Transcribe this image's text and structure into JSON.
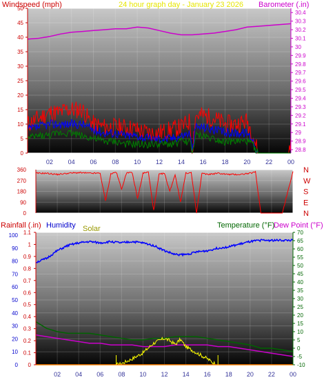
{
  "panel_top": {
    "left_title": "Windspeed (mph)",
    "center_title": "24 hour graph day - January 23 2026",
    "right_title": "Barometer (.in)"
  },
  "panel_bottom": {
    "rain_label": "Rainfall (.in)",
    "humidity_label": "Humidity",
    "solar_label": "Solar",
    "temp_label": "Temperature (°F)",
    "dew_label": "Dew Point (°F)"
  },
  "colors": {
    "windspeed": "#ff0000",
    "wind_avg": "#0000ff",
    "wind_low": "#008000",
    "barometer": "#cc00cc",
    "direction": "#ff0000",
    "humidity": "#0000ff",
    "temperature": "#006400",
    "dewpoint": "#cc00cc",
    "solar": "#ffff00",
    "rain": "#ff8000",
    "windspeed_label": "#cc0000",
    "title_yellow": "#e6e600",
    "barometer_label": "#cc00cc",
    "rain_label": "#cc0000",
    "humidity_label": "#0000cc",
    "solar_label": "#999900",
    "temp_label": "#006600",
    "dew_label": "#cc00cc",
    "direction_label": "#cc0000"
  },
  "chart_data": [
    {
      "type": "line",
      "name": "wind_barometer",
      "x_ticks": [
        "02",
        "04",
        "06",
        "08",
        "10",
        "12",
        "14",
        "16",
        "18",
        "20",
        "22",
        "00"
      ],
      "xlim": [
        0,
        24
      ],
      "y_left_ticks": [
        "0",
        "5",
        "10",
        "15",
        "20",
        "25",
        "30",
        "35",
        "40",
        "45",
        "50"
      ],
      "y_left_lim": [
        0,
        50
      ],
      "y_right_ticks": [
        "28.8",
        "28.9",
        "29",
        "29.1",
        "29.2",
        "29.3",
        "29.4",
        "29.5",
        "29.6",
        "29.7",
        "29.8",
        "29.9",
        "30",
        "30.1",
        "30.2",
        "30.3",
        "30.4"
      ],
      "y_right_lim": [
        28.76,
        30.45
      ],
      "series": [
        {
          "name": "Windspeed",
          "axis": "left",
          "x": [
            0,
            1,
            2,
            3,
            3.5,
            4,
            5,
            5.5,
            6,
            7,
            8,
            9,
            10,
            11,
            12,
            13,
            14,
            14.8,
            15,
            15.3,
            16,
            17,
            18,
            19,
            20,
            20.5,
            21,
            22,
            23,
            23.8,
            24
          ],
          "y": [
            10,
            12,
            14,
            14,
            15,
            15,
            15,
            12,
            10,
            9,
            9,
            9,
            8,
            7,
            7,
            8,
            9,
            11,
            0,
            13,
            13,
            12,
            10,
            10,
            11,
            7,
            0,
            0,
            0,
            0,
            5
          ]
        },
        {
          "name": "Wind average",
          "axis": "left",
          "x": [
            0,
            1,
            2,
            3,
            4,
            5,
            6,
            7,
            8,
            9,
            10,
            11,
            12,
            13,
            14,
            14.8,
            15,
            15.3,
            16,
            17,
            18,
            19,
            20,
            20.5,
            21,
            24
          ],
          "y": [
            8,
            9,
            10,
            10,
            10,
            10,
            8,
            7,
            7,
            6,
            6,
            5,
            5,
            5,
            6,
            7,
            0,
            9,
            9,
            8,
            7,
            7,
            7,
            5,
            0,
            0
          ]
        },
        {
          "name": "Wind low",
          "axis": "left",
          "x": [
            0,
            1,
            2,
            3,
            4,
            5,
            6,
            7,
            8,
            9,
            10,
            11,
            12,
            13,
            14,
            14.8,
            15,
            15.3,
            16,
            17,
            18,
            19,
            20,
            20.5,
            21,
            24
          ],
          "y": [
            5,
            6,
            6,
            7,
            7,
            6,
            5,
            4,
            4,
            3,
            3,
            3,
            3,
            3,
            4,
            4,
            0,
            6,
            6,
            5,
            4,
            4,
            4,
            3,
            0,
            0
          ]
        },
        {
          "name": "Barometer",
          "axis": "right",
          "x": [
            0,
            1,
            2,
            3,
            4,
            5,
            6,
            7,
            8,
            9,
            10,
            11,
            12,
            13,
            14,
            15,
            16,
            17,
            18,
            19,
            20,
            21,
            22,
            23,
            24
          ],
          "y": [
            30.09,
            30.1,
            30.12,
            30.15,
            30.17,
            30.18,
            30.19,
            30.2,
            30.21,
            30.21,
            30.23,
            30.22,
            30.19,
            30.16,
            30.14,
            30.14,
            30.15,
            30.16,
            30.18,
            30.2,
            30.23,
            30.24,
            30.25,
            30.26,
            30.27
          ]
        }
      ]
    },
    {
      "type": "scatter",
      "name": "wind_direction",
      "x_ticks": [
        "02",
        "04",
        "06",
        "08",
        "10",
        "12",
        "14",
        "16",
        "18",
        "20",
        "22",
        "00"
      ],
      "xlim": [
        0,
        24
      ],
      "y_ticks": [
        "0",
        "90",
        "180",
        "270",
        "360"
      ],
      "ylim": [
        0,
        360
      ],
      "compass_labels": [
        "N",
        "W",
        "S",
        "E",
        "N"
      ],
      "series": [
        {
          "name": "Direction",
          "x": [
            0,
            1,
            2,
            3,
            4,
            5,
            6,
            6.5,
            7,
            7.5,
            8,
            8.5,
            9,
            9.5,
            10,
            10.5,
            11,
            11.5,
            12,
            12.5,
            13,
            13.5,
            14,
            14.5,
            15,
            15.5,
            16,
            17,
            18,
            19,
            20,
            20.5,
            21,
            22,
            23,
            24
          ],
          "y": [
            330,
            330,
            320,
            330,
            335,
            330,
            330,
            100,
            325,
            340,
            200,
            340,
            330,
            120,
            330,
            340,
            20,
            320,
            330,
            180,
            320,
            90,
            330,
            335,
            0,
            330,
            320,
            330,
            320,
            320,
            330,
            340,
            0,
            0,
            0,
            345
          ]
        }
      ]
    },
    {
      "type": "line",
      "name": "temp_humidity_solar",
      "x_ticks": [
        "02",
        "04",
        "06",
        "08",
        "10",
        "12",
        "14",
        "16",
        "18",
        "20",
        "22",
        "00"
      ],
      "xlim": [
        0,
        24
      ],
      "y_left_ticks": [
        "0",
        "0.1",
        "0.2",
        "0.3",
        "0.4",
        "0.5",
        "0.6",
        "0.7",
        "0.8",
        "0.9",
        "1",
        "1.1"
      ],
      "y_left_lim": [
        0,
        1.1
      ],
      "y_hum_ticks": [
        "0",
        "10",
        "20",
        "30",
        "40",
        "50",
        "60",
        "70",
        "80",
        "90",
        "100"
      ],
      "y_hum_lim": [
        0,
        100
      ],
      "y_right_ticks": [
        "-10",
        "-5",
        "0",
        "5",
        "10",
        "15",
        "20",
        "25",
        "30",
        "35",
        "40",
        "45",
        "50",
        "55",
        "60",
        "65",
        "70"
      ],
      "y_right_lim": [
        -10,
        70
      ],
      "series": [
        {
          "name": "Humidity",
          "axis": "humidity",
          "x": [
            0,
            1,
            2,
            3,
            4,
            5,
            6,
            7,
            8,
            9,
            10,
            11,
            12,
            13,
            14,
            15,
            16,
            17,
            18,
            19,
            20,
            21,
            22,
            23,
            24
          ],
          "y": [
            79,
            82,
            88,
            92,
            94,
            95,
            94,
            95,
            94,
            95,
            94,
            92,
            88,
            85,
            85,
            87,
            88,
            90,
            91,
            93,
            95,
            96,
            96,
            96,
            96
          ]
        },
        {
          "name": "Temperature",
          "axis": "right",
          "x": [
            0,
            1,
            2,
            3,
            4,
            5,
            6,
            7,
            8,
            9,
            10,
            11,
            12,
            13,
            14,
            15,
            16,
            17,
            18,
            19,
            20,
            21,
            22,
            23,
            24
          ],
          "y": [
            16,
            12,
            10,
            9,
            9,
            9,
            8,
            7,
            6,
            5,
            5,
            6,
            6,
            7,
            7,
            7,
            6,
            5,
            4,
            3,
            2,
            0,
            0,
            -1,
            -2
          ]
        },
        {
          "name": "Dew Point",
          "axis": "right",
          "x": [
            0,
            1,
            2,
            3,
            4,
            5,
            6,
            7,
            8,
            9,
            10,
            11,
            12,
            13,
            14,
            15,
            16,
            17,
            18,
            19,
            20,
            21,
            22,
            23,
            24
          ],
          "y": [
            8,
            7,
            6,
            5,
            4,
            3,
            3,
            2,
            2,
            2,
            1,
            1,
            1,
            2,
            2,
            2,
            2,
            1,
            1,
            0,
            -1,
            -2,
            -3,
            -4,
            -5
          ]
        },
        {
          "name": "Solar",
          "axis": "left",
          "x": [
            0,
            7.5,
            8,
            9,
            10,
            10.5,
            11,
            11.5,
            12,
            12.5,
            13,
            13.5,
            14,
            15,
            16,
            16.5,
            17,
            24
          ],
          "y": [
            0,
            0,
            0.01,
            0.05,
            0.1,
            0.14,
            0.18,
            0.2,
            0.22,
            0.2,
            0.17,
            0.21,
            0.15,
            0.1,
            0.05,
            0.02,
            0,
            0
          ]
        },
        {
          "name": "Rainfall",
          "axis": "left",
          "x": [
            0,
            24
          ],
          "y": [
            0,
            0
          ]
        }
      ]
    }
  ]
}
